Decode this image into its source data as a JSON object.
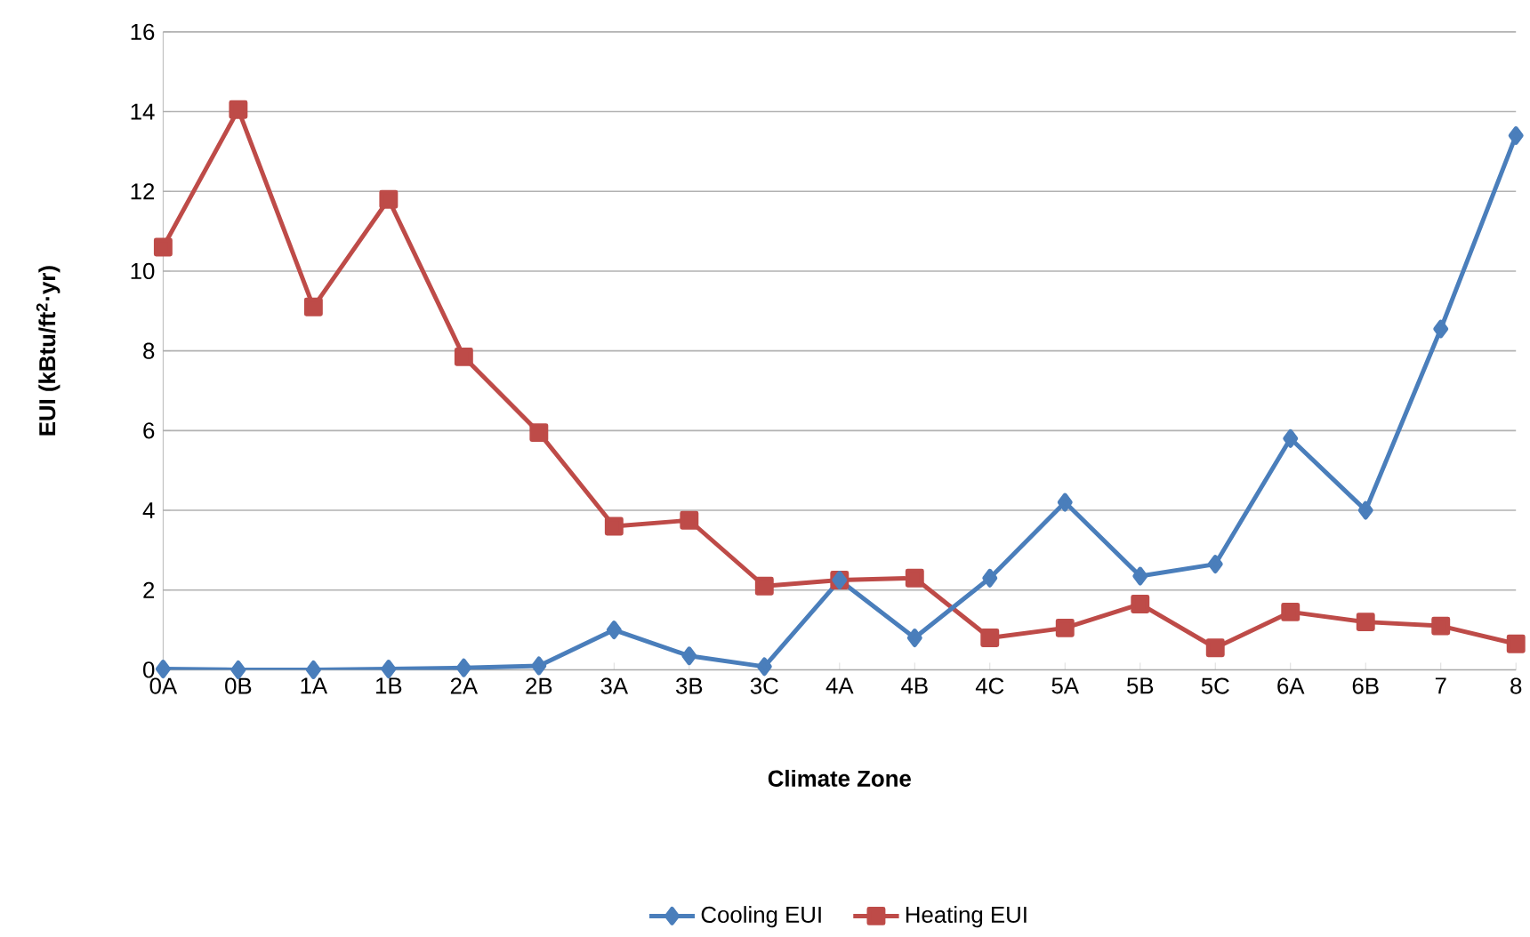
{
  "chart_data": {
    "type": "line",
    "xlabel": "Climate Zone",
    "ylabel": "EUI (kBtu/ft$^{2}$·yr)",
    "categories": [
      "0A",
      "0B",
      "1A",
      "1B",
      "2A",
      "2B",
      "3A",
      "3B",
      "3C",
      "4A",
      "4B",
      "4C",
      "5A",
      "5B",
      "5C",
      "6A",
      "6B",
      "7",
      "8"
    ],
    "series": [
      {
        "name": "Cooling EUI",
        "color": "#4a7ebb",
        "marker": "diamond",
        "values": [
          0.02,
          0,
          0,
          0.02,
          0.05,
          0.1,
          1.0,
          0.35,
          0.08,
          2.25,
          0.8,
          2.3,
          4.2,
          2.35,
          2.65,
          5.8,
          4.0,
          8.55,
          13.4
        ]
      },
      {
        "name": "Heating EUI",
        "color": "#be4b48",
        "marker": "square",
        "values": [
          10.6,
          14.05,
          9.1,
          11.8,
          7.85,
          5.95,
          3.6,
          3.75,
          2.1,
          2.25,
          2.3,
          0.8,
          1.05,
          1.65,
          0.55,
          1.45,
          1.2,
          1.1,
          0.65
        ]
      }
    ],
    "ylim": [
      0,
      16
    ],
    "yticks": [
      0,
      2,
      4,
      6,
      8,
      10,
      12,
      14,
      16
    ],
    "grid": "y",
    "legend": "bottom",
    "line_style": "solid"
  }
}
